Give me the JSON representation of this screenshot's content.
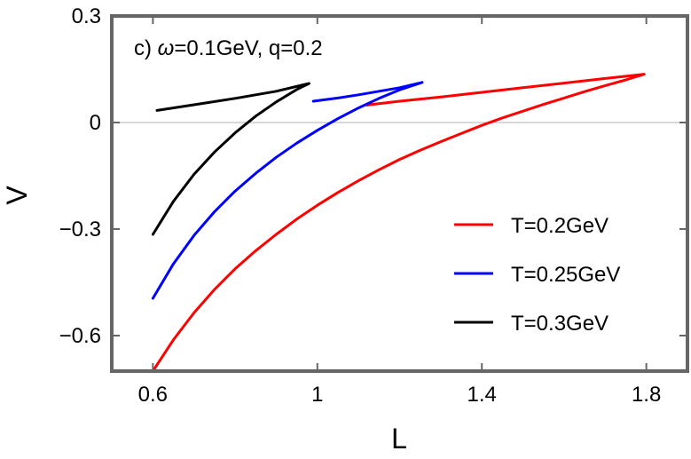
{
  "chart_data": {
    "type": "line",
    "title": "",
    "annotation": {
      "prefix": "c) ",
      "omega": "ω",
      "rest": "=0.1GeV, q=0.2"
    },
    "xlabel": "L",
    "ylabel": "V",
    "xlim": [
      0.5,
      1.9
    ],
    "ylim": [
      -0.7,
      0.3
    ],
    "xticks": [
      0.6,
      1,
      1.4,
      1.8
    ],
    "xtick_labels": [
      "0.6",
      "1",
      "1.4",
      "1.8"
    ],
    "yticks": [
      0.3,
      0,
      -0.3,
      -0.6
    ],
    "ytick_labels": [
      "0.3",
      "0",
      "−0.3",
      "−0.6"
    ],
    "zero_line": true,
    "legend_position": "lower-right",
    "series": [
      {
        "name": "T=0.2GeV",
        "color": "#ff0000",
        "points": [
          [
            0.6,
            -0.7
          ],
          [
            0.65,
            -0.612
          ],
          [
            0.7,
            -0.536
          ],
          [
            0.75,
            -0.47
          ],
          [
            0.8,
            -0.412
          ],
          [
            0.85,
            -0.361
          ],
          [
            0.9,
            -0.315
          ],
          [
            0.95,
            -0.272
          ],
          [
            1.0,
            -0.233
          ],
          [
            1.05,
            -0.197
          ],
          [
            1.1,
            -0.164
          ],
          [
            1.15,
            -0.133
          ],
          [
            1.2,
            -0.104
          ],
          [
            1.25,
            -0.078
          ],
          [
            1.3,
            -0.054
          ],
          [
            1.35,
            -0.031
          ],
          [
            1.4,
            -0.008
          ],
          [
            1.45,
            0.013
          ],
          [
            1.5,
            0.032
          ],
          [
            1.55,
            0.051
          ],
          [
            1.6,
            0.069
          ],
          [
            1.65,
            0.087
          ],
          [
            1.7,
            0.104
          ],
          [
            1.75,
            0.12
          ],
          [
            1.795,
            0.136
          ],
          [
            1.7,
            0.124
          ],
          [
            1.6,
            0.111
          ],
          [
            1.5,
            0.098
          ],
          [
            1.4,
            0.085
          ],
          [
            1.3,
            0.072
          ],
          [
            1.2,
            0.06
          ],
          [
            1.12,
            0.049
          ]
        ]
      },
      {
        "name": "T=0.25GeV",
        "color": "#0000ff",
        "points": [
          [
            0.6,
            -0.495
          ],
          [
            0.65,
            -0.398
          ],
          [
            0.7,
            -0.318
          ],
          [
            0.75,
            -0.251
          ],
          [
            0.8,
            -0.193
          ],
          [
            0.85,
            -0.143
          ],
          [
            0.9,
            -0.098
          ],
          [
            0.95,
            -0.058
          ],
          [
            1.0,
            -0.022
          ],
          [
            1.05,
            0.011
          ],
          [
            1.1,
            0.041
          ],
          [
            1.15,
            0.068
          ],
          [
            1.2,
            0.092
          ],
          [
            1.255,
            0.113
          ],
          [
            1.2,
            0.098
          ],
          [
            1.15,
            0.088
          ],
          [
            1.1,
            0.078
          ],
          [
            1.05,
            0.069
          ],
          [
            0.99,
            0.06
          ]
        ]
      },
      {
        "name": "T=0.3GeV",
        "color": "#000000",
        "points": [
          [
            0.6,
            -0.315
          ],
          [
            0.65,
            -0.222
          ],
          [
            0.7,
            -0.146
          ],
          [
            0.75,
            -0.083
          ],
          [
            0.8,
            -0.029
          ],
          [
            0.85,
            0.018
          ],
          [
            0.9,
            0.058
          ],
          [
            0.95,
            0.093
          ],
          [
            0.98,
            0.11
          ],
          [
            0.9,
            0.088
          ],
          [
            0.8,
            0.068
          ],
          [
            0.7,
            0.05
          ],
          [
            0.61,
            0.034
          ]
        ]
      }
    ]
  }
}
